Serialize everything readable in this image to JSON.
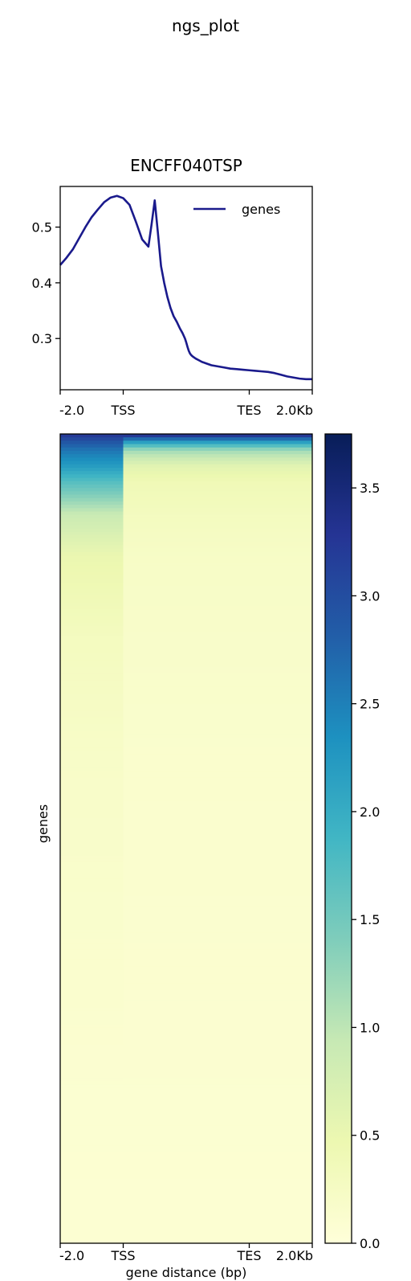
{
  "figure": {
    "suptitle": "ngs_plot"
  },
  "chart_data": [
    {
      "type": "line",
      "title": "ENCFF040TSP",
      "xlabel": "",
      "ylabel": "",
      "x_ticks": [
        "-2.0",
        "TSS",
        "TES",
        "2.0Kb"
      ],
      "y_ticks": [
        "0.3",
        "0.4",
        "0.5"
      ],
      "y_tick_values": [
        0.3,
        0.4,
        0.5
      ],
      "xlim": [
        -2000,
        2000
      ],
      "ylim": [
        0.208,
        0.573
      ],
      "legend": "top-right",
      "series": [
        {
          "name": "genes",
          "color": "#1a1a8c",
          "x": [
            -2000,
            -1900,
            -1800,
            -1700,
            -1600,
            -1500,
            -1400,
            -1300,
            -1200,
            -1100,
            -1000,
            -900,
            -800,
            -700,
            -600,
            -550,
            -500,
            -450,
            -400,
            -350,
            -300,
            -250,
            -200,
            -150,
            -100,
            -60,
            -40,
            -20,
            0,
            20,
            40,
            60,
            80,
            100,
            150,
            200,
            250,
            300,
            350,
            400,
            500,
            600,
            700,
            800,
            900,
            1000,
            1100,
            1200,
            1300,
            1400,
            1500,
            1600,
            1700,
            1800,
            1900,
            2000
          ],
          "y": [
            0.432,
            0.445,
            0.46,
            0.48,
            0.5,
            0.518,
            0.532,
            0.545,
            0.553,
            0.556,
            0.552,
            0.54,
            0.51,
            0.478,
            0.465,
            0.505,
            0.548,
            0.49,
            0.43,
            0.4,
            0.375,
            0.355,
            0.34,
            0.33,
            0.318,
            0.31,
            0.305,
            0.3,
            0.293,
            0.285,
            0.278,
            0.273,
            0.27,
            0.268,
            0.264,
            0.261,
            0.258,
            0.256,
            0.254,
            0.252,
            0.25,
            0.248,
            0.246,
            0.245,
            0.244,
            0.243,
            0.242,
            0.241,
            0.24,
            0.238,
            0.235,
            0.232,
            0.23,
            0.228,
            0.227,
            0.227
          ]
        }
      ]
    },
    {
      "type": "heatmap",
      "title": "",
      "xlabel": "gene distance (bp)",
      "ylabel": "genes",
      "x_ticks": [
        "-2.0",
        "TSS",
        "TES",
        "2.0Kb"
      ],
      "colormap": "YlGnBu",
      "colorbar": {
        "vmin": 0.0,
        "vmax": 3.75,
        "ticks": [
          "0.0",
          "0.5",
          "1.0",
          "1.5",
          "2.0",
          "2.5",
          "3.0",
          "3.5"
        ],
        "tick_values": [
          0.0,
          0.5,
          1.0,
          1.5,
          2.0,
          2.5,
          3.0,
          3.5
        ],
        "stops": [
          "#ffffd9",
          "#edf8b1",
          "#c7e9b4",
          "#7fcdbb",
          "#41b6c4",
          "#1d91c0",
          "#225ea8",
          "#253494",
          "#081d58"
        ]
      },
      "row_profile": {
        "fractions": [
          0.0,
          0.01,
          0.02,
          0.04,
          0.06,
          0.1,
          0.15,
          0.25,
          0.4,
          0.6,
          0.8,
          1.0
        ],
        "region_a_values": [
          3.3,
          2.9,
          2.6,
          2.2,
          1.7,
          0.9,
          0.5,
          0.3,
          0.2,
          0.15,
          0.1,
          0.08
        ],
        "region_b_values": [
          3.5,
          2.2,
          1.2,
          0.6,
          0.4,
          0.3,
          0.22,
          0.18,
          0.14,
          0.12,
          0.1,
          0.08
        ]
      }
    }
  ]
}
